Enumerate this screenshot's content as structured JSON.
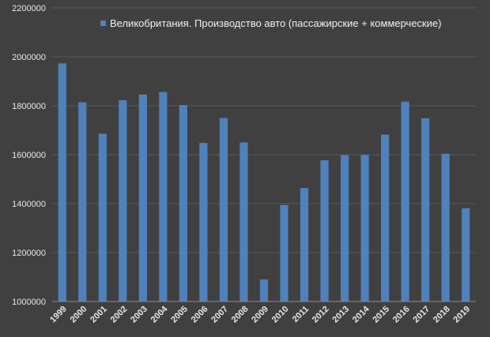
{
  "chart_data": {
    "type": "bar",
    "categories": [
      "1999",
      "2000",
      "2001",
      "2002",
      "2003",
      "2004",
      "2005",
      "2006",
      "2007",
      "2008",
      "2009",
      "2010",
      "2011",
      "2012",
      "2013",
      "2014",
      "2015",
      "2016",
      "2017",
      "2018",
      "2019"
    ],
    "series": [
      {
        "name": "Великобритания. Производство авто (пассажирские + коммерческие)",
        "values": [
          1973000,
          1814000,
          1686000,
          1823000,
          1846000,
          1856000,
          1803000,
          1648000,
          1750000,
          1650000,
          1090000,
          1394000,
          1464000,
          1577000,
          1598000,
          1599000,
          1682000,
          1817000,
          1749000,
          1604000,
          1381000
        ]
      }
    ],
    "ylim": [
      1000000,
      2200000
    ],
    "yticks": [
      "1000000",
      "1200000",
      "1400000",
      "1600000",
      "1800000",
      "2000000",
      "2200000"
    ],
    "grid": true,
    "legend_position": "top",
    "colors": {
      "bar": "#4f81bd",
      "background": "#404040",
      "grid": "#5a5a5a",
      "text": "#e8e8e8"
    }
  }
}
